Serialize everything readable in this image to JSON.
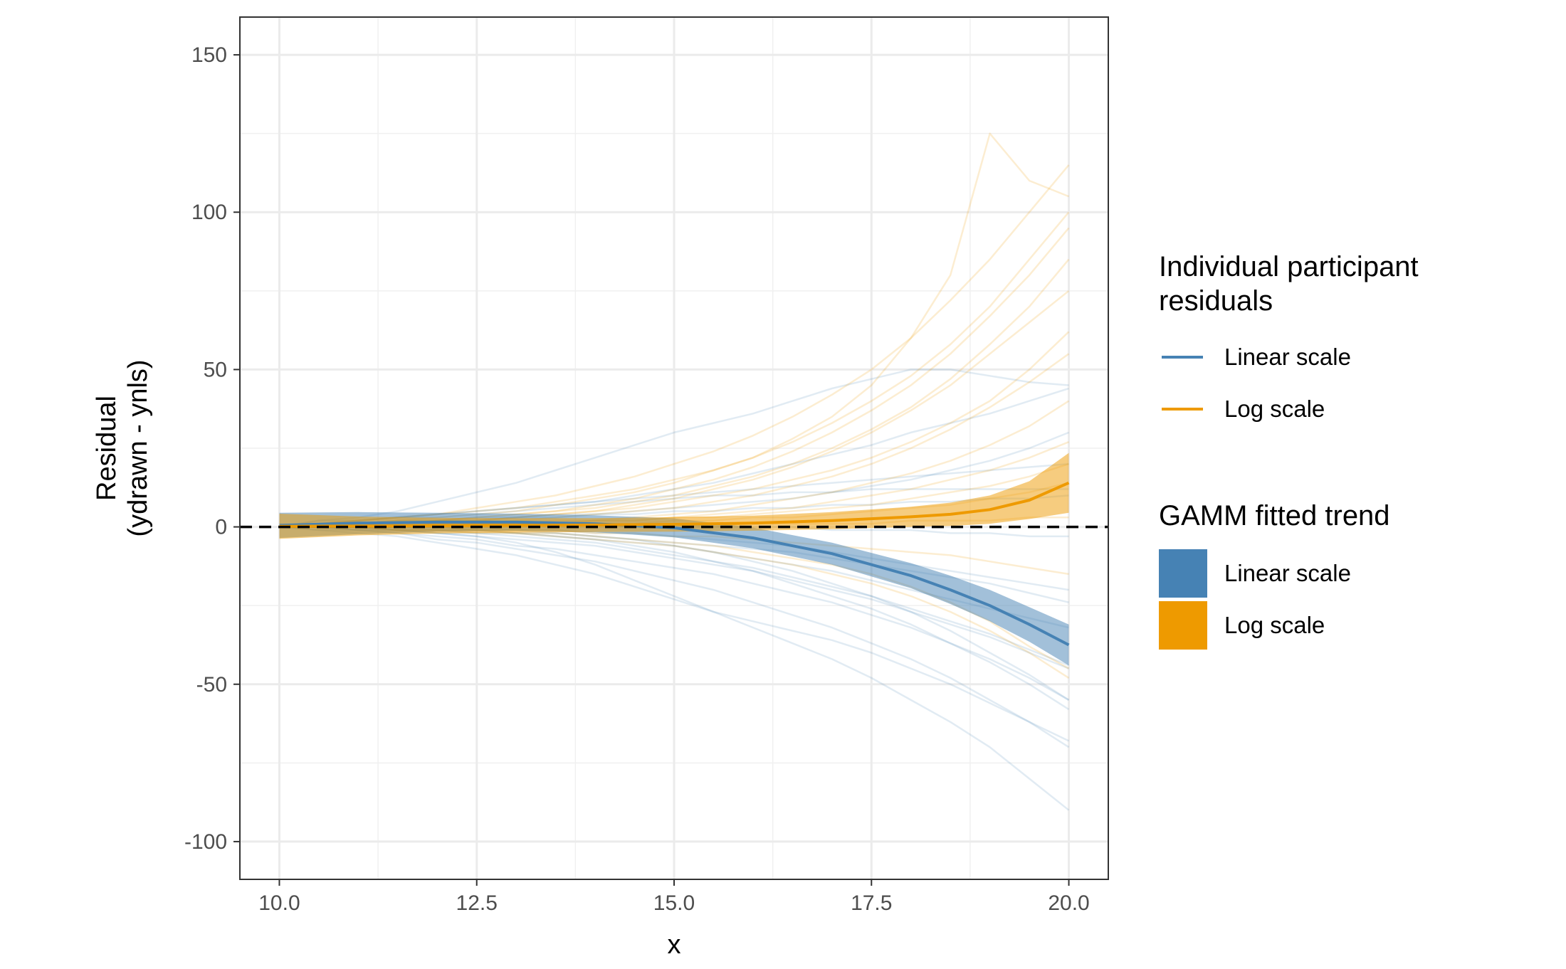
{
  "chart_data": {
    "type": "line",
    "xlabel": "x",
    "ylabel": [
      "Residual",
      "(ydrawn - ynls)"
    ],
    "xlim": [
      9.5,
      20.5
    ],
    "ylim": [
      -112,
      162
    ],
    "x_ticks": [
      10,
      12.5,
      15,
      17.5,
      20
    ],
    "x_tick_labels": [
      "10.0",
      "12.5",
      "15.0",
      "17.5",
      "20.0"
    ],
    "y_ticks": [
      -100,
      -50,
      0,
      50,
      100,
      150
    ],
    "y_tick_labels": [
      "-100",
      "-50",
      "0",
      "50",
      "100",
      "150"
    ],
    "grid": true,
    "reference_line": {
      "y": 0,
      "style": "dashed",
      "color": "#000000"
    },
    "colors": {
      "linear": "#4682B4",
      "log": "#EE9A00"
    },
    "legend_placement": "right",
    "legends": [
      {
        "title": [
          "Individual participant",
          "residuals"
        ],
        "key": "line",
        "entries": [
          {
            "label": "Linear scale",
            "color": "#4682B4"
          },
          {
            "label": "Log scale",
            "color": "#EE9A00"
          }
        ]
      },
      {
        "title": [
          "GAMM fitted trend"
        ],
        "key": "fill",
        "entries": [
          {
            "label": "Linear scale",
            "color": "#4682B4"
          },
          {
            "label": "Log scale",
            "color": "#EE9A00"
          }
        ]
      }
    ],
    "individual_lines": {
      "x": [
        10,
        10.5,
        11,
        11.5,
        12,
        12.5,
        13,
        13.5,
        14,
        14.5,
        15,
        15.5,
        16,
        16.5,
        17,
        17.5,
        18,
        18.5,
        19,
        19.5,
        20
      ],
      "linear_scale": [
        [
          0,
          2,
          2,
          3,
          4,
          5,
          6,
          7,
          8,
          10,
          12,
          14,
          17,
          20,
          23,
          26,
          30,
          33,
          36,
          40,
          44
        ],
        [
          0,
          2,
          3,
          5,
          8,
          11,
          14,
          18,
          22,
          26,
          30,
          33,
          36,
          40,
          44,
          47,
          50,
          50,
          48,
          46,
          45
        ],
        [
          0,
          1,
          2,
          3,
          4,
          5,
          6,
          7,
          8,
          9,
          10,
          11,
          12,
          13,
          14,
          15,
          16,
          17,
          18,
          19,
          20
        ],
        [
          0,
          0,
          1,
          1,
          2,
          2,
          3,
          3,
          4,
          4,
          5,
          5,
          6,
          6,
          7,
          7,
          8,
          8,
          9,
          9,
          10
        ],
        [
          0,
          0,
          0,
          0,
          1,
          1,
          1,
          1,
          1,
          1,
          1,
          0,
          0,
          0,
          -1,
          -1,
          -1,
          -2,
          -2,
          -3,
          -3
        ],
        [
          0,
          0,
          0,
          0,
          0,
          0,
          -1,
          -1,
          -2,
          -2,
          -3,
          -4,
          -5,
          -6,
          -8,
          -10,
          -12,
          -14,
          -16,
          -18,
          -20
        ],
        [
          0,
          0,
          0,
          -1,
          -1,
          -2,
          -2,
          -3,
          -4,
          -5,
          -6,
          -8,
          -10,
          -12,
          -14,
          -17,
          -20,
          -23,
          -26,
          -29,
          -32
        ],
        [
          0,
          0,
          -1,
          -1,
          -2,
          -3,
          -4,
          -5,
          -6,
          -8,
          -10,
          -12,
          -14,
          -17,
          -20,
          -23,
          -27,
          -31,
          -35,
          -40,
          -45
        ],
        [
          0,
          0,
          -1,
          -2,
          -3,
          -4,
          -6,
          -7,
          -9,
          -11,
          -13,
          -15,
          -18,
          -21,
          -24,
          -28,
          -32,
          -37,
          -42,
          -48,
          -55
        ],
        [
          0,
          -1,
          -1,
          -2,
          -4,
          -5,
          -7,
          -9,
          -11,
          -14,
          -17,
          -20,
          -24,
          -28,
          -32,
          -37,
          -42,
          -48,
          -55,
          -62,
          -70
        ],
        [
          0,
          -1,
          -2,
          -3,
          -5,
          -7,
          -9,
          -12,
          -15,
          -19,
          -23,
          -27,
          -32,
          -37,
          -42,
          -48,
          -55,
          -62,
          -70,
          -80,
          -90
        ],
        [
          0,
          0,
          0,
          -1,
          -2,
          -3,
          -5,
          -8,
          -12,
          -17,
          -22,
          -27,
          -30,
          -33,
          -36,
          -40,
          -45,
          -50,
          -56,
          -62,
          -68
        ],
        [
          0,
          0,
          0,
          0,
          -1,
          -1,
          -2,
          -3,
          -4,
          -6,
          -8,
          -11,
          -14,
          -18,
          -22,
          -26,
          -31,
          -37,
          -43,
          -50,
          -58
        ],
        [
          0,
          1,
          2,
          3,
          3,
          4,
          5,
          6,
          7,
          8,
          9,
          10,
          10,
          11,
          11,
          12,
          12,
          12,
          12,
          12,
          12
        ],
        [
          0,
          0,
          0,
          -1,
          -1,
          -1,
          -2,
          -2,
          -3,
          -4,
          -5,
          -6,
          -7,
          -8,
          -10,
          -12,
          -14,
          -16,
          -18,
          -21,
          -24
        ],
        [
          0,
          0,
          -1,
          -1,
          -2,
          -2,
          -3,
          -4,
          -5,
          -7,
          -9,
          -11,
          -13,
          -16,
          -19,
          -22,
          -26,
          -30,
          -34,
          -39,
          -44
        ],
        [
          0,
          1,
          1,
          2,
          2,
          3,
          3,
          4,
          4,
          5,
          6,
          7,
          8,
          9,
          11,
          13,
          15,
          18,
          21,
          25,
          30
        ],
        [
          0,
          0,
          0,
          0,
          0,
          -1,
          -1,
          -2,
          -3,
          -4,
          -6,
          -8,
          -11,
          -14,
          -18,
          -22,
          -27,
          -33,
          -40,
          -47,
          -55
        ]
      ],
      "log_scale": [
        [
          0,
          1,
          2,
          3,
          4,
          5,
          6,
          8,
          10,
          12,
          15,
          18,
          22,
          27,
          33,
          40,
          48,
          58,
          70,
          85,
          100
        ],
        [
          0,
          0,
          1,
          1,
          2,
          3,
          4,
          5,
          7,
          9,
          12,
          15,
          19,
          24,
          30,
          37,
          45,
          55,
          67,
          80,
          95
        ],
        [
          0,
          0,
          1,
          1,
          1,
          2,
          3,
          4,
          5,
          7,
          9,
          12,
          15,
          19,
          24,
          30,
          37,
          45,
          55,
          65,
          75
        ],
        [
          0,
          0,
          0,
          1,
          1,
          1,
          2,
          3,
          4,
          5,
          6,
          8,
          10,
          13,
          16,
          20,
          25,
          31,
          38,
          46,
          55
        ],
        [
          0,
          0,
          0,
          0,
          1,
          1,
          1,
          2,
          2,
          3,
          4,
          5,
          7,
          9,
          11,
          14,
          17,
          21,
          26,
          32,
          40
        ],
        [
          0,
          0,
          0,
          0,
          0,
          1,
          1,
          1,
          2,
          2,
          3,
          4,
          5,
          6,
          8,
          10,
          12,
          15,
          18,
          22,
          27
        ],
        [
          0,
          0,
          0,
          0,
          0,
          0,
          0,
          1,
          1,
          1,
          2,
          2,
          3,
          3,
          4,
          5,
          6,
          7,
          9,
          11,
          14
        ],
        [
          0,
          0,
          0,
          0,
          0,
          0,
          0,
          0,
          0,
          0,
          0,
          0,
          1,
          1,
          1,
          1,
          2,
          2,
          2,
          3,
          3
        ],
        [
          0,
          0,
          0,
          0,
          0,
          -1,
          -1,
          -1,
          -2,
          -2,
          -3,
          -3,
          -4,
          -5,
          -6,
          -7,
          -8,
          -9,
          -11,
          -13,
          -15
        ],
        [
          0,
          0,
          0,
          -1,
          -1,
          -2,
          -2,
          -3,
          -4,
          -5,
          -6,
          -8,
          -10,
          -12,
          -15,
          -18,
          -22,
          -27,
          -33,
          -40,
          -48
        ],
        [
          0,
          1,
          2,
          3,
          4,
          6,
          8,
          10,
          13,
          16,
          20,
          24,
          29,
          35,
          42,
          50,
          60,
          72,
          85,
          100,
          115
        ],
        [
          0,
          1,
          1,
          2,
          3,
          4,
          5,
          7,
          9,
          11,
          14,
          18,
          22,
          28,
          35,
          45,
          60,
          80,
          125,
          110,
          105
        ],
        [
          0,
          0,
          1,
          1,
          2,
          2,
          3,
          4,
          5,
          6,
          8,
          10,
          12,
          15,
          18,
          22,
          27,
          33,
          40,
          50,
          62
        ],
        [
          0,
          0,
          0,
          0,
          1,
          1,
          1,
          1,
          2,
          2,
          3,
          3,
          4,
          5,
          6,
          7,
          9,
          11,
          13,
          16,
          20
        ],
        [
          0,
          0,
          0,
          -1,
          -1,
          -1,
          -2,
          -2,
          -3,
          -4,
          -5,
          -6,
          -8,
          -10,
          -12,
          -15,
          -19,
          -24,
          -30,
          -38,
          -45
        ],
        [
          0,
          1,
          1,
          2,
          2,
          3,
          4,
          5,
          6,
          8,
          10,
          13,
          16,
          20,
          25,
          31,
          38,
          47,
          58,
          70,
          85
        ]
      ]
    },
    "gamm_trend": {
      "x": [
        10,
        11,
        12,
        13,
        14,
        15,
        16,
        17,
        18,
        18.5,
        19,
        19.5,
        20
      ],
      "linear_scale": {
        "fit": [
          0.5,
          1.2,
          1.5,
          1.5,
          1.0,
          -0.3,
          -3.5,
          -8.5,
          -15.5,
          -20,
          -25,
          -31,
          -37.5
        ],
        "lower": [
          -3.5,
          -2.3,
          -1.5,
          -1.2,
          -1.7,
          -3.3,
          -6.8,
          -12,
          -19.5,
          -24.5,
          -30,
          -36.5,
          -44
        ],
        "upper": [
          4.5,
          4.7,
          4.5,
          4.2,
          3.7,
          2.7,
          -0.2,
          -5,
          -11.5,
          -15.5,
          -20,
          -25.5,
          -31
        ]
      },
      "log_scale": {
        "fit": [
          0.2,
          0.3,
          0.4,
          0.5,
          0.6,
          0.8,
          1.2,
          2.0,
          3.2,
          4.0,
          5.5,
          8.5,
          14.0
        ],
        "lower": [
          -3.8,
          -2.7,
          -2.1,
          -1.8,
          -1.6,
          -1.5,
          -1.2,
          -0.7,
          0.0,
          0.3,
          1.0,
          2.5,
          4.5
        ],
        "upper": [
          4.2,
          3.3,
          2.9,
          2.8,
          2.8,
          3.1,
          3.6,
          4.7,
          6.4,
          7.7,
          10.0,
          14.5,
          23.5
        ]
      }
    }
  }
}
